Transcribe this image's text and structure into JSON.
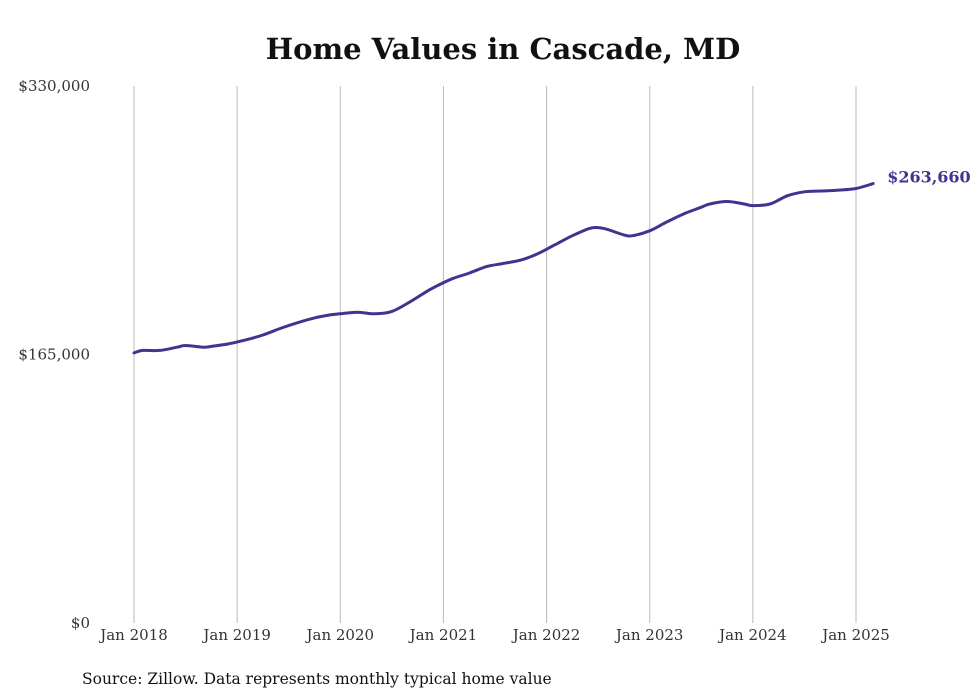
{
  "chart_data": {
    "type": "line",
    "title": "Home Values in Cascade, MD",
    "xlabel": "",
    "ylabel": "",
    "ylim": [
      0,
      330000
    ],
    "y_ticks": [
      {
        "value": 0,
        "label": "$0"
      },
      {
        "value": 165000,
        "label": "$165,000"
      },
      {
        "value": 330000,
        "label": "$330,000"
      }
    ],
    "x_ticks": [
      {
        "value": 2018,
        "label": "Jan 2018"
      },
      {
        "value": 2019,
        "label": "Jan 2019"
      },
      {
        "value": 2020,
        "label": "Jan 2020"
      },
      {
        "value": 2021,
        "label": "Jan 2021"
      },
      {
        "value": 2022,
        "label": "Jan 2022"
      },
      {
        "value": 2023,
        "label": "Jan 2023"
      },
      {
        "value": 2024,
        "label": "Jan 2024"
      },
      {
        "value": 2025,
        "label": "Jan 2025"
      }
    ],
    "grid": "vertical",
    "color": "#3d3590",
    "end_label": "$263,660",
    "series": [
      {
        "x": [
          "2018-01",
          "2018-02",
          "2018-04",
          "2018-06",
          "2018-07",
          "2018-09",
          "2018-10",
          "2018-12",
          "2019-02",
          "2019-04",
          "2019-06",
          "2019-08",
          "2019-10",
          "2019-12",
          "2020-01",
          "2020-03",
          "2020-05",
          "2020-07",
          "2020-09",
          "2020-11",
          "2020-12",
          "2021-02",
          "2021-04",
          "2021-06",
          "2021-08",
          "2021-10",
          "2021-12",
          "2022-02",
          "2022-04",
          "2022-06",
          "2022-07",
          "2022-08",
          "2022-10",
          "2022-11",
          "2023-01",
          "2023-03",
          "2023-05",
          "2023-07",
          "2023-08",
          "2023-10",
          "2023-12",
          "2024-01",
          "2024-03",
          "2024-05",
          "2024-07",
          "2024-09",
          "2024-11",
          "2025-01",
          "2025-03"
        ],
        "y": [
          166000,
          167500,
          167500,
          169500,
          170500,
          169500,
          170000,
          171500,
          174000,
          177000,
          181000,
          184500,
          187500,
          189500,
          190000,
          191000,
          190000,
          191500,
          197000,
          203500,
          206500,
          211500,
          215000,
          219000,
          221000,
          223000,
          227000,
          232500,
          238000,
          242500,
          243000,
          242000,
          238500,
          238000,
          241000,
          246500,
          251500,
          255500,
          257500,
          259000,
          257500,
          256500,
          257500,
          262500,
          265000,
          265500,
          266000,
          267000,
          270000
        ]
      }
    ]
  },
  "source_note": "Source: Zillow. Data represents monthly typical home value"
}
